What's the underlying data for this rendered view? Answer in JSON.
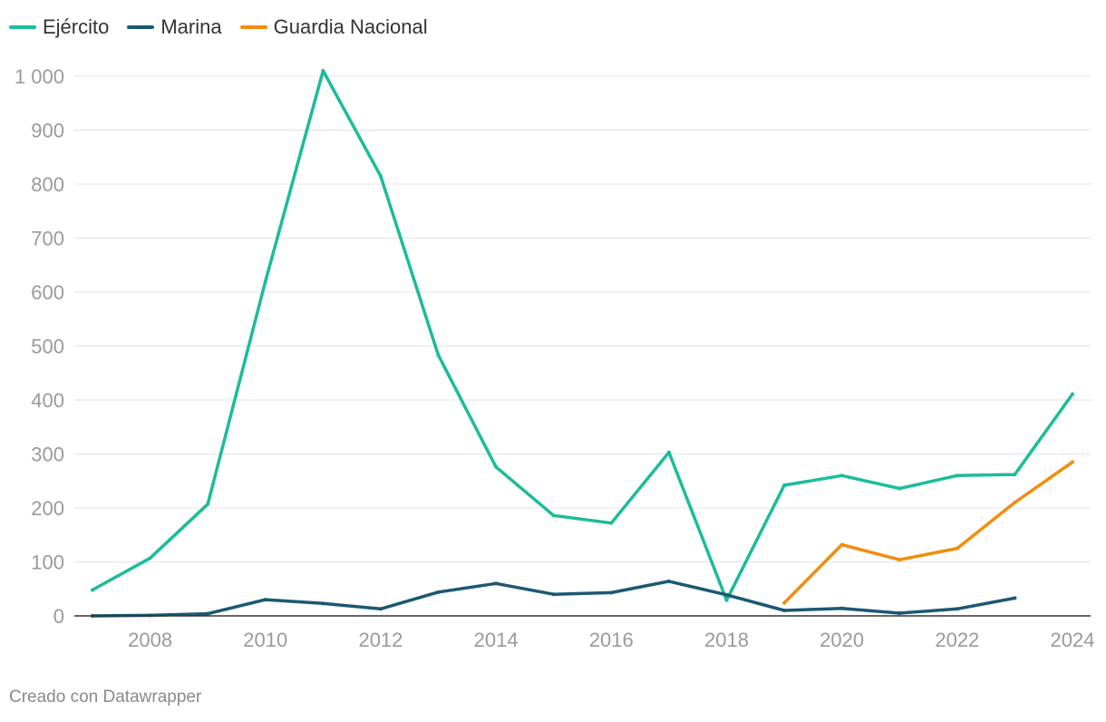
{
  "legend": [
    {
      "label": "Ejército",
      "color": "#1abc9c"
    },
    {
      "label": "Marina",
      "color": "#1b5873"
    },
    {
      "label": "Guardia Nacional",
      "color": "#f28c0f"
    }
  ],
  "credit": "Creado con Datawrapper",
  "chart_data": {
    "type": "line",
    "title": "",
    "xlabel": "",
    "ylabel": "",
    "xlim": [
      2007,
      2024
    ],
    "ylim": [
      0,
      1000
    ],
    "grid": true,
    "legend_position": "top-left",
    "x_ticks": [
      2008,
      2010,
      2012,
      2014,
      2016,
      2018,
      2020,
      2022,
      2024
    ],
    "x_tick_labels": [
      "2008",
      "2010",
      "2012",
      "2014",
      "2016",
      "2018",
      "2020",
      "2022",
      "2024"
    ],
    "y_ticks": [
      0,
      100,
      200,
      300,
      400,
      500,
      600,
      700,
      800,
      900,
      1000
    ],
    "y_tick_labels": [
      "0",
      "100",
      "200",
      "300",
      "400",
      "500",
      "600",
      "700",
      "800",
      "900",
      "1 000"
    ],
    "series": [
      {
        "name": "Ejército",
        "color": "#1abc9c",
        "x": [
          2007,
          2008,
          2009,
          2010,
          2011,
          2012,
          2013,
          2014,
          2015,
          2016,
          2017,
          2018,
          2019,
          2020,
          2021,
          2022,
          2023,
          2024
        ],
        "values": [
          48,
          107,
          207,
          620,
          1010,
          815,
          483,
          276,
          186,
          172,
          303,
          29,
          242,
          260,
          236,
          260,
          262,
          411
        ]
      },
      {
        "name": "Marina",
        "color": "#1b5873",
        "x": [
          2007,
          2008,
          2009,
          2010,
          2011,
          2012,
          2013,
          2014,
          2015,
          2016,
          2017,
          2018,
          2019,
          2020,
          2021,
          2022,
          2023
        ],
        "values": [
          0,
          1,
          4,
          30,
          23,
          13,
          44,
          60,
          40,
          43,
          64,
          39,
          10,
          14,
          5,
          13,
          33
        ]
      },
      {
        "name": "Guardia Nacional",
        "color": "#f28c0f",
        "x": [
          2019,
          2020,
          2021,
          2022,
          2023,
          2024
        ],
        "values": [
          24,
          132,
          104,
          125,
          210,
          285
        ]
      }
    ]
  }
}
